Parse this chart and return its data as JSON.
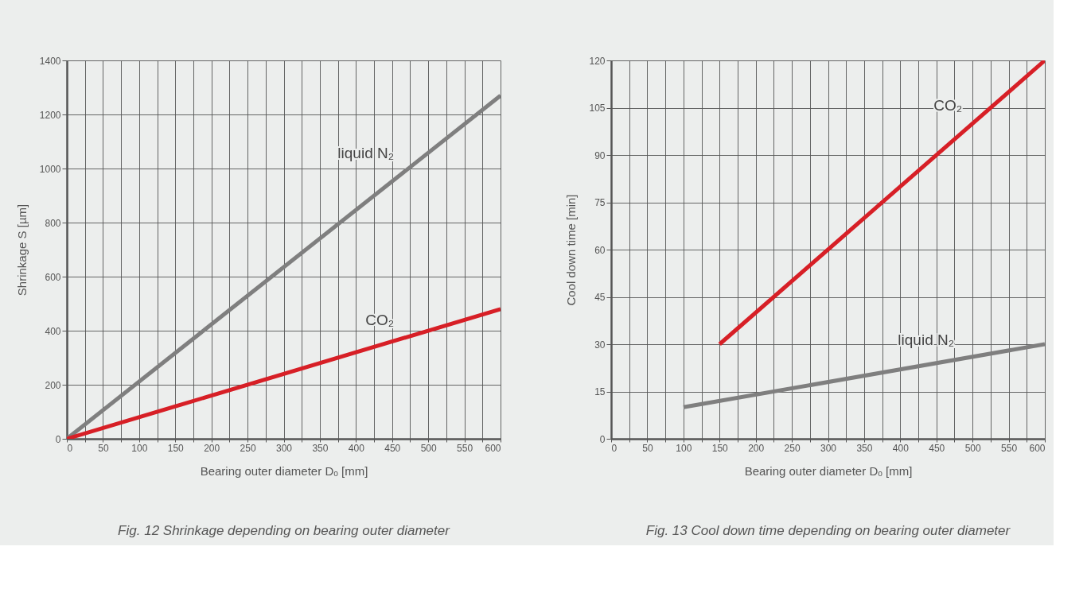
{
  "chart_data": [
    {
      "type": "line",
      "xlabel": "Bearing outer diameter Dₒ [mm]",
      "ylabel": "Shrinkage S [µm]",
      "annotations": [
        "Fig. 12 Shrinkage depending on bearing outer diameter"
      ],
      "xlim": [
        0,
        600
      ],
      "ylim": [
        0,
        1400
      ],
      "xticks": [
        0,
        {
          "value": 25,
          "label": null
        },
        50,
        {
          "value": 75,
          "label": null
        },
        100,
        {
          "value": 125,
          "label": null
        },
        150,
        {
          "value": 175,
          "label": null
        },
        200,
        {
          "value": 225,
          "label": null
        },
        250,
        {
          "value": 275,
          "label": null
        },
        300,
        {
          "value": 325,
          "label": null
        },
        350,
        {
          "value": 375,
          "label": null
        },
        400,
        {
          "value": 425,
          "label": null
        },
        450,
        {
          "value": 475,
          "label": null
        },
        500,
        {
          "value": 525,
          "label": null
        },
        550,
        {
          "value": 575,
          "label": null
        },
        600
      ],
      "yticks": [
        0,
        200,
        400,
        600,
        800,
        1000,
        1200,
        1400
      ],
      "grid": true,
      "line_style": "solid",
      "series": [
        {
          "name": "liquid N₂",
          "color": "#7f7f7f",
          "x": [
            0,
            600
          ],
          "values": [
            0,
            1270
          ]
        },
        {
          "name": "CO₂",
          "color": "#d71f26",
          "x": [
            0,
            600
          ],
          "values": [
            0,
            480
          ]
        }
      ]
    },
    {
      "type": "line",
      "xlabel": "Bearing outer diameter Dₒ [mm]",
      "ylabel": "Cool down time [min]",
      "annotations": [
        "Fig. 13 Cool down time depending on bearing outer diameter"
      ],
      "xlim": [
        0,
        600
      ],
      "ylim": [
        0,
        120
      ],
      "xticks": [
        0,
        {
          "value": 25,
          "label": null
        },
        50,
        {
          "value": 75,
          "label": null
        },
        100,
        {
          "value": 125,
          "label": null
        },
        150,
        {
          "value": 175,
          "label": null
        },
        200,
        {
          "value": 225,
          "label": null
        },
        250,
        {
          "value": 275,
          "label": null
        },
        300,
        {
          "value": 325,
          "label": null
        },
        350,
        {
          "value": 375,
          "label": null
        },
        400,
        {
          "value": 425,
          "label": null
        },
        450,
        {
          "value": 475,
          "label": null
        },
        500,
        {
          "value": 525,
          "label": null
        },
        550,
        {
          "value": 575,
          "label": null
        },
        600
      ],
      "yticks": [
        0,
        15,
        30,
        45,
        60,
        75,
        90,
        105,
        120
      ],
      "grid": true,
      "line_style": "solid",
      "series": [
        {
          "name": "CO₂",
          "color": "#d71f26",
          "x": [
            150,
            600
          ],
          "values": [
            30,
            120
          ]
        },
        {
          "name": "liquid N₂",
          "color": "#7f7f7f",
          "x": [
            100,
            600
          ],
          "values": [
            10,
            30
          ]
        }
      ]
    }
  ]
}
